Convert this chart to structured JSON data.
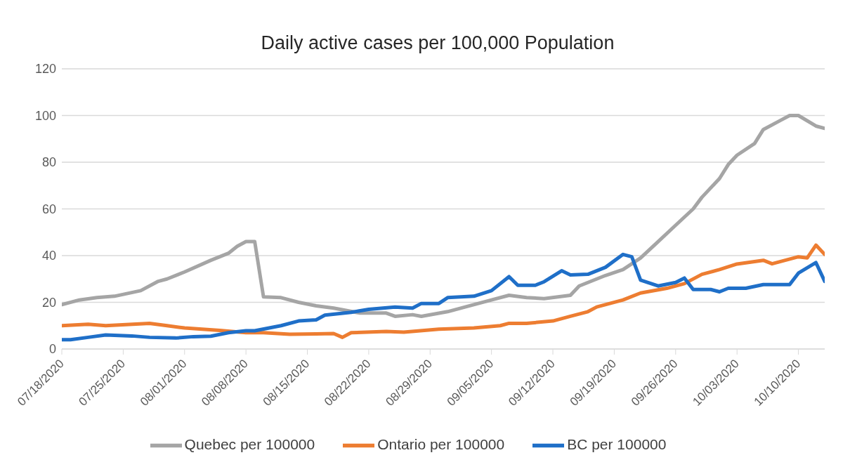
{
  "chart_data": {
    "type": "line",
    "title": "Daily active cases per 100,000 Population",
    "xlim": [
      "2020-07-18",
      "2020-10-13"
    ],
    "xticks": [
      {
        "value": "2020-07-18",
        "label": "07/18/2020"
      },
      {
        "value": "2020-07-25",
        "label": "07/25/2020"
      },
      {
        "value": "2020-08-01",
        "label": "08/01/2020"
      },
      {
        "value": "2020-08-08",
        "label": "08/08/2020"
      },
      {
        "value": "2020-08-15",
        "label": "08/15/2020"
      },
      {
        "value": "2020-08-22",
        "label": "08/22/2020"
      },
      {
        "value": "2020-08-29",
        "label": "08/29/2020"
      },
      {
        "value": "2020-09-05",
        "label": "09/05/2020"
      },
      {
        "value": "2020-09-12",
        "label": "09/12/2020"
      },
      {
        "value": "2020-09-19",
        "label": "09/19/2020"
      },
      {
        "value": "2020-09-26",
        "label": "09/26/2020"
      },
      {
        "value": "2020-10-03",
        "label": "10/03/2020"
      },
      {
        "value": "2020-10-10",
        "label": "10/10/2020"
      }
    ],
    "ylim": [
      0,
      120
    ],
    "yticks": [
      0,
      20,
      40,
      60,
      80,
      100,
      120
    ],
    "grid": "y",
    "legend": "bottom",
    "line_style": "solid",
    "series": [
      {
        "name": "Quebec per 100000",
        "color": "#a5a5a5",
        "x": [
          "2020-07-18",
          "2020-07-20",
          "2020-07-22",
          "2020-07-24",
          "2020-07-27",
          "2020-07-29",
          "2020-07-30",
          "2020-08-01",
          "2020-08-04",
          "2020-08-06",
          "2020-08-07",
          "2020-08-08",
          "2020-08-09",
          "2020-08-10",
          "2020-08-12",
          "2020-08-14",
          "2020-08-16",
          "2020-08-18",
          "2020-08-21",
          "2020-08-24",
          "2020-08-25",
          "2020-08-27",
          "2020-08-28",
          "2020-08-31",
          "2020-09-02",
          "2020-09-05",
          "2020-09-07",
          "2020-09-09",
          "2020-09-11",
          "2020-09-14",
          "2020-09-15",
          "2020-09-17",
          "2020-09-18",
          "2020-09-20",
          "2020-09-22",
          "2020-09-24",
          "2020-09-26",
          "2020-09-28",
          "2020-09-29",
          "2020-10-01",
          "2020-10-02",
          "2020-10-03",
          "2020-10-05",
          "2020-10-06",
          "2020-10-08",
          "2020-10-09",
          "2020-10-10",
          "2020-10-12",
          "2020-10-13"
        ],
        "values": [
          19,
          21,
          22,
          22.6,
          25,
          29,
          30,
          33,
          38,
          41,
          44,
          46,
          46,
          22.3,
          22,
          20,
          18.5,
          17.5,
          15.4,
          15.4,
          14,
          14.7,
          14,
          16,
          18,
          21,
          23,
          22,
          21.6,
          23,
          27,
          30,
          31.5,
          34,
          39,
          46,
          53,
          60,
          65,
          73,
          79,
          83,
          88,
          94,
          98,
          100,
          100,
          95.5,
          94.5
        ]
      },
      {
        "name": "Ontario per 100000",
        "color": "#ed7d31",
        "x": [
          "2020-07-18",
          "2020-07-21",
          "2020-07-23",
          "2020-07-28",
          "2020-07-30",
          "2020-08-01",
          "2020-08-03",
          "2020-08-05",
          "2020-08-08",
          "2020-08-10",
          "2020-08-13",
          "2020-08-16",
          "2020-08-18",
          "2020-08-19",
          "2020-08-20",
          "2020-08-24",
          "2020-08-26",
          "2020-08-30",
          "2020-09-03",
          "2020-09-06",
          "2020-09-07",
          "2020-09-09",
          "2020-09-12",
          "2020-09-14",
          "2020-09-16",
          "2020-09-17",
          "2020-09-20",
          "2020-09-22",
          "2020-09-25",
          "2020-09-27",
          "2020-09-29",
          "2020-10-01",
          "2020-10-03",
          "2020-10-06",
          "2020-10-07",
          "2020-10-10",
          "2020-10-11",
          "2020-10-12",
          "2020-10-13"
        ],
        "values": [
          10,
          10.6,
          10,
          11,
          10,
          9,
          8.5,
          8,
          7,
          7,
          6.3,
          6.5,
          6.6,
          5,
          7,
          7.5,
          7.2,
          8.5,
          9,
          10,
          11,
          11,
          12,
          14,
          16,
          18,
          21,
          24,
          26,
          28,
          32,
          34,
          36.4,
          38,
          36.5,
          39.5,
          39,
          44.5,
          40.5
        ]
      },
      {
        "name": "BC per 100000",
        "color": "#1f6fc8",
        "x": [
          "2020-07-18",
          "2020-07-19",
          "2020-07-21",
          "2020-07-23",
          "2020-07-26",
          "2020-07-28",
          "2020-07-31",
          "2020-08-02",
          "2020-08-04",
          "2020-08-06",
          "2020-08-08",
          "2020-08-09",
          "2020-08-12",
          "2020-08-14",
          "2020-08-16",
          "2020-08-17",
          "2020-08-20",
          "2020-08-22",
          "2020-08-25",
          "2020-08-27",
          "2020-08-28",
          "2020-08-30",
          "2020-08-31",
          "2020-09-03",
          "2020-09-05",
          "2020-09-07",
          "2020-09-08",
          "2020-09-10",
          "2020-09-11",
          "2020-09-13",
          "2020-09-14",
          "2020-09-16",
          "2020-09-18",
          "2020-09-20",
          "2020-09-21",
          "2020-09-22",
          "2020-09-24",
          "2020-09-26",
          "2020-09-27",
          "2020-09-28",
          "2020-09-30",
          "2020-10-01",
          "2020-10-02",
          "2020-10-04",
          "2020-10-06",
          "2020-10-09",
          "2020-10-10",
          "2020-10-12",
          "2020-10-13"
        ],
        "values": [
          4,
          4,
          5,
          6,
          5.6,
          5,
          4.7,
          5.3,
          5.5,
          7,
          7.8,
          7.8,
          10,
          12,
          12.5,
          14.5,
          15.7,
          17,
          18,
          17.5,
          19.5,
          19.5,
          22,
          22.6,
          25,
          31,
          27.3,
          27.3,
          28.8,
          33.5,
          31.7,
          32,
          35,
          40.5,
          39.5,
          29.5,
          27,
          28.5,
          30.4,
          25.5,
          25.5,
          24.5,
          26,
          26,
          27.6,
          27.6,
          32.5,
          37,
          29
        ]
      }
    ]
  }
}
